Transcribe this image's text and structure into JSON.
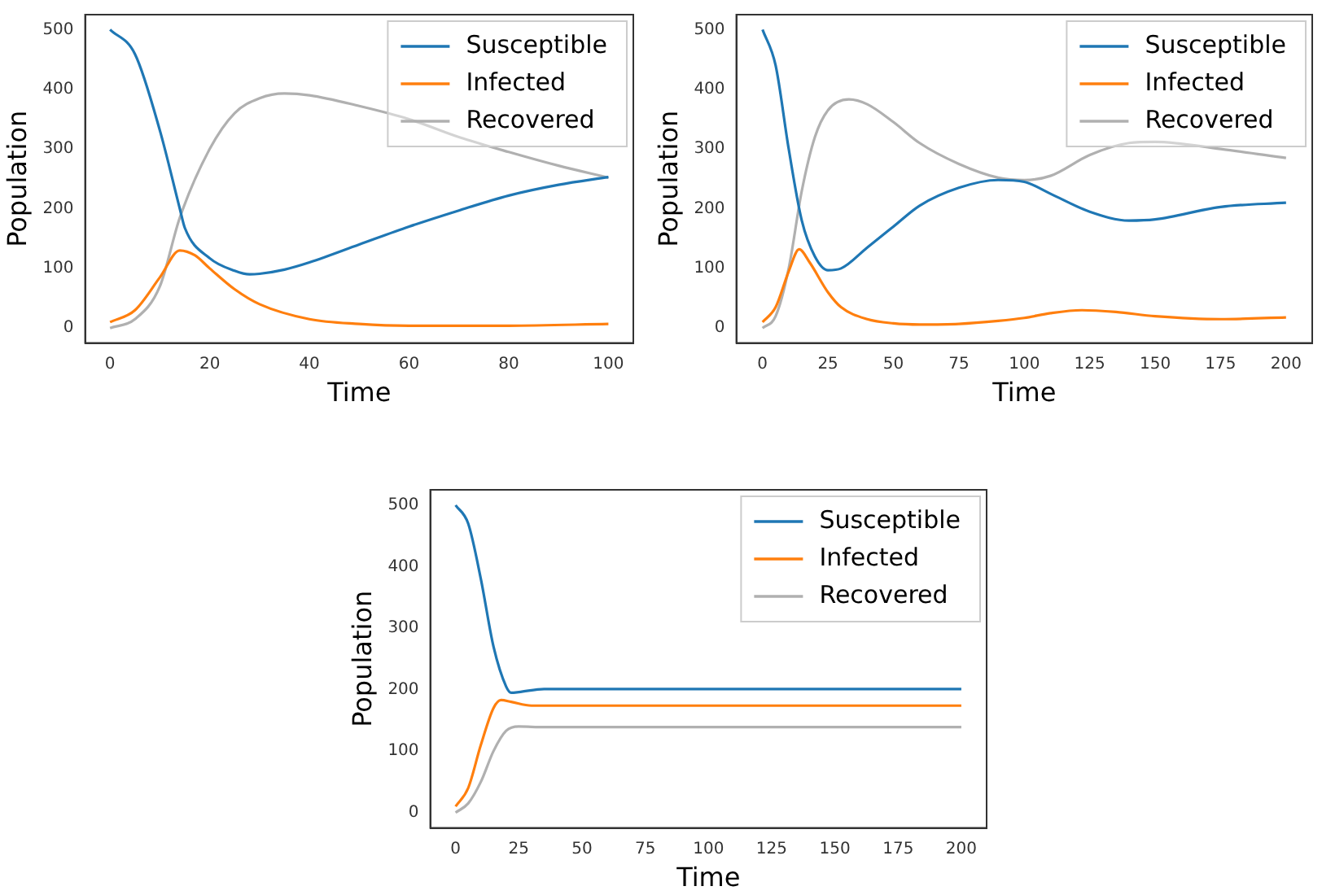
{
  "chart_data": [
    {
      "type": "line",
      "xlabel": "Time",
      "ylabel": "Population",
      "xlim": [
        -5,
        105
      ],
      "ylim": [
        -25,
        525
      ],
      "xticks": [
        0,
        20,
        40,
        60,
        80,
        100
      ],
      "yticks": [
        0,
        100,
        200,
        300,
        400,
        500
      ],
      "legend": "top right",
      "grid": false,
      "series": [
        {
          "name": "Susceptible",
          "color": "#1f77b4",
          "x": [
            0,
            5,
            10,
            14,
            15,
            20,
            25,
            28,
            30,
            35,
            40,
            50,
            60,
            70,
            80,
            90,
            100
          ],
          "values": [
            500,
            459,
            331,
            200,
            168,
            117,
            96,
            90,
            91,
            98,
            110,
            140,
            170,
            197,
            222,
            240,
            253
          ]
        },
        {
          "name": "Infected",
          "color": "#ff7f0e",
          "x": [
            0,
            5,
            10,
            14,
            17,
            20,
            25,
            30,
            40,
            50,
            60,
            80,
            100
          ],
          "values": [
            10,
            30,
            85,
            130,
            122,
            100,
            65,
            40,
            15,
            7,
            4,
            4,
            7
          ]
        },
        {
          "name": "Recovered",
          "color": "#b0b0b0",
          "x": [
            0,
            5,
            10,
            14,
            20,
            25,
            30,
            35,
            40,
            50,
            60,
            70,
            80,
            90,
            100
          ],
          "values": [
            0,
            15,
            70,
            185,
            300,
            360,
            385,
            393,
            390,
            372,
            350,
            320,
            295,
            272,
            252
          ]
        }
      ]
    },
    {
      "type": "line",
      "xlabel": "Time",
      "ylabel": "Population",
      "xlim": [
        -10,
        210
      ],
      "ylim": [
        -25,
        525
      ],
      "xticks": [
        0,
        25,
        50,
        75,
        100,
        125,
        150,
        175,
        200
      ],
      "yticks": [
        0,
        100,
        200,
        300,
        400,
        500
      ],
      "legend": "top right",
      "grid": false,
      "series": [
        {
          "name": "Susceptible",
          "color": "#1f77b4",
          "x": [
            0,
            5,
            10,
            15,
            20,
            25,
            30,
            40,
            50,
            60,
            75,
            90,
            100,
            110,
            125,
            140,
            150,
            175,
            200
          ],
          "values": [
            500,
            440,
            300,
            180,
            120,
            97,
            100,
            135,
            170,
            205,
            235,
            248,
            245,
            225,
            195,
            180,
            182,
            203,
            210
          ]
        },
        {
          "name": "Infected",
          "color": "#ff7f0e",
          "x": [
            0,
            5,
            10,
            14,
            18,
            25,
            30,
            40,
            50,
            60,
            75,
            90,
            100,
            110,
            122,
            135,
            150,
            175,
            200
          ],
          "values": [
            10,
            35,
            95,
            132,
            110,
            60,
            35,
            15,
            8,
            6,
            7,
            12,
            17,
            25,
            30,
            27,
            20,
            15,
            18
          ]
        },
        {
          "name": "Recovered",
          "color": "#b0b0b0",
          "x": [
            0,
            5,
            10,
            15,
            20,
            25,
            33,
            40,
            50,
            60,
            75,
            90,
            100,
            110,
            125,
            140,
            150,
            175,
            200
          ],
          "values": [
            0,
            20,
            100,
            230,
            320,
            365,
            383,
            375,
            345,
            310,
            275,
            252,
            248,
            255,
            290,
            310,
            312,
            300,
            285
          ]
        }
      ]
    },
    {
      "type": "line",
      "xlabel": "Time",
      "ylabel": "Population",
      "xlim": [
        -10,
        210
      ],
      "ylim": [
        -25,
        525
      ],
      "xticks": [
        0,
        25,
        50,
        75,
        100,
        125,
        150,
        175,
        200
      ],
      "yticks": [
        0,
        100,
        200,
        300,
        400,
        500
      ],
      "legend": "top right",
      "grid": false,
      "series": [
        {
          "name": "Susceptible",
          "color": "#1f77b4",
          "x": [
            0,
            5,
            10,
            15,
            20,
            22,
            25,
            35,
            200
          ],
          "values": [
            500,
            470,
            380,
            270,
            205,
            195,
            196,
            201,
            201
          ]
        },
        {
          "name": "Infected",
          "color": "#ff7f0e",
          "x": [
            0,
            5,
            10,
            15,
            18,
            22,
            30,
            200
          ],
          "values": [
            10,
            40,
            110,
            170,
            183,
            180,
            174,
            174
          ]
        },
        {
          "name": "Recovered",
          "color": "#b0b0b0",
          "x": [
            0,
            5,
            10,
            15,
            20,
            25,
            35,
            200
          ],
          "values": [
            0,
            15,
            50,
            100,
            133,
            140,
            139,
            139
          ]
        }
      ]
    }
  ]
}
